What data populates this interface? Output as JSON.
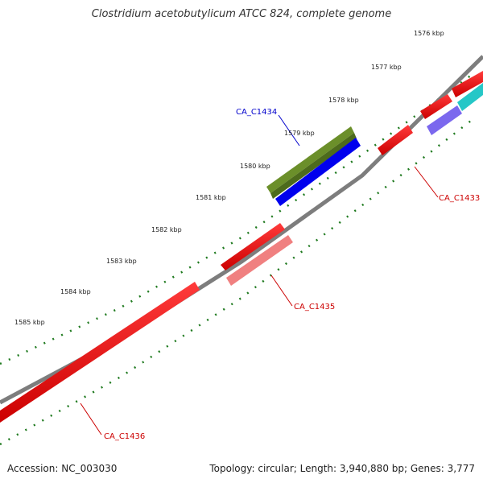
{
  "title": "Clostridium acetobutylicum ATCC 824, complete genome",
  "footer": {
    "accession": "Accession: NC_003030",
    "summary": "Topology: circular; Length: 3,940,880 bp; Genes: 3,777"
  },
  "colors": {
    "backbone": "#808080",
    "tick_marks": "#1f7a1f",
    "label_red": "#cc0000",
    "label_blue": "#0000cc"
  },
  "kbp_labels": [
    "1576 kbp",
    "1577 kbp",
    "1578 kbp",
    "1579 kbp",
    "1580 kbp",
    "1581 kbp",
    "1582 kbp",
    "1583 kbp",
    "1584 kbp",
    "1585 kbp"
  ],
  "gene_labels": {
    "ca_c1433": "CA_C1433",
    "ca_c1434": "CA_C1434",
    "ca_c1435": "CA_C1435",
    "ca_c1436": "CA_C1436"
  }
}
